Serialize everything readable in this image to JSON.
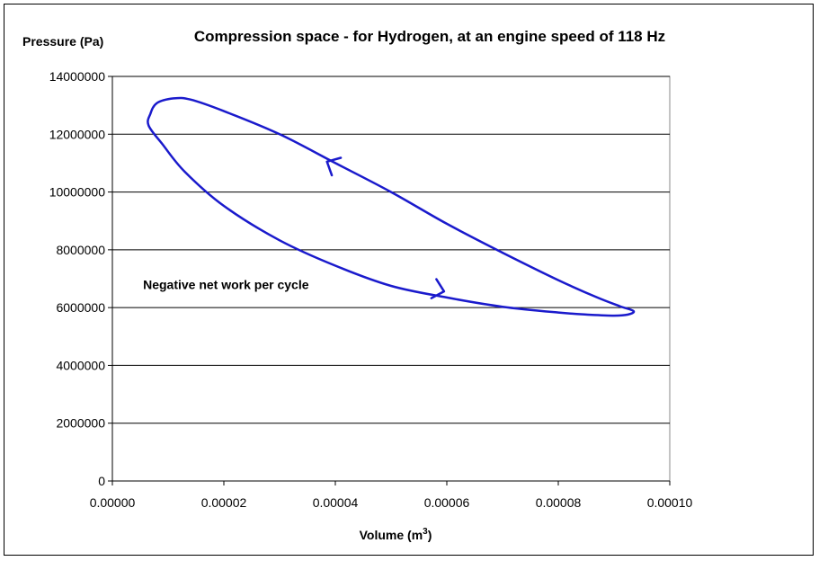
{
  "chart_data": {
    "type": "line",
    "title": "Compression space - for Hydrogen, at an engine speed of 118 Hz",
    "ylabel": "Pressure (Pa)",
    "xlabel_text": "Volume (m",
    "xlabel_sup": "3",
    "xlabel_close": ")",
    "xlim": [
      0,
      0.0001
    ],
    "ylim": [
      0,
      14000000
    ],
    "x_ticks": [
      0,
      2e-05,
      4e-05,
      6e-05,
      8e-05,
      0.0001
    ],
    "x_tick_labels": [
      "0.00000",
      "0.00002",
      "0.00004",
      "0.00006",
      "0.00008",
      "0.00010"
    ],
    "y_ticks": [
      0,
      2000000,
      4000000,
      6000000,
      8000000,
      10000000,
      12000000,
      14000000
    ],
    "y_tick_labels": [
      "0",
      "2000000",
      "4000000",
      "6000000",
      "8000000",
      "10000000",
      "12000000",
      "14000000"
    ],
    "grid": {
      "horizontal": true,
      "vertical": false
    },
    "series": [
      {
        "color": "#1a1acc",
        "closed": true,
        "points": [
          [
            6.8e-06,
            12700000
          ],
          [
            8e-06,
            13080000
          ],
          [
            1.1e-05,
            13240000
          ],
          [
            1.4e-05,
            13200000
          ],
          [
            2e-05,
            12800000
          ],
          [
            3e-05,
            12000000
          ],
          [
            4e-05,
            11000000
          ],
          [
            5e-05,
            10000000
          ],
          [
            6e-05,
            8900000
          ],
          [
            7e-05,
            7900000
          ],
          [
            8e-05,
            6950000
          ],
          [
            8.7e-05,
            6350000
          ],
          [
            9.1e-05,
            6050000
          ],
          [
            9.35e-05,
            5880000
          ],
          [
            9.25e-05,
            5760000
          ],
          [
            9e-05,
            5720000
          ],
          [
            8.5e-05,
            5760000
          ],
          [
            8e-05,
            5830000
          ],
          [
            7e-05,
            6030000
          ],
          [
            6e-05,
            6350000
          ],
          [
            5e-05,
            6750000
          ],
          [
            4e-05,
            7450000
          ],
          [
            3e-05,
            8330000
          ],
          [
            2e-05,
            9520000
          ],
          [
            1.3e-05,
            10700000
          ],
          [
            9e-06,
            11650000
          ],
          [
            6.5e-06,
            12300000
          ]
        ]
      }
    ],
    "direction_arrows": [
      {
        "at": [
          3.85e-05,
          11050000
        ],
        "toward": [
          3.35e-05,
          11550000
        ]
      },
      {
        "at": [
          5.95e-05,
          6560000
        ],
        "toward": [
          6.4e-05,
          6330000
        ]
      }
    ],
    "annotations": [
      {
        "text": "Negative net work per cycle",
        "x": 5.5e-06,
        "y": 6800000
      }
    ]
  }
}
